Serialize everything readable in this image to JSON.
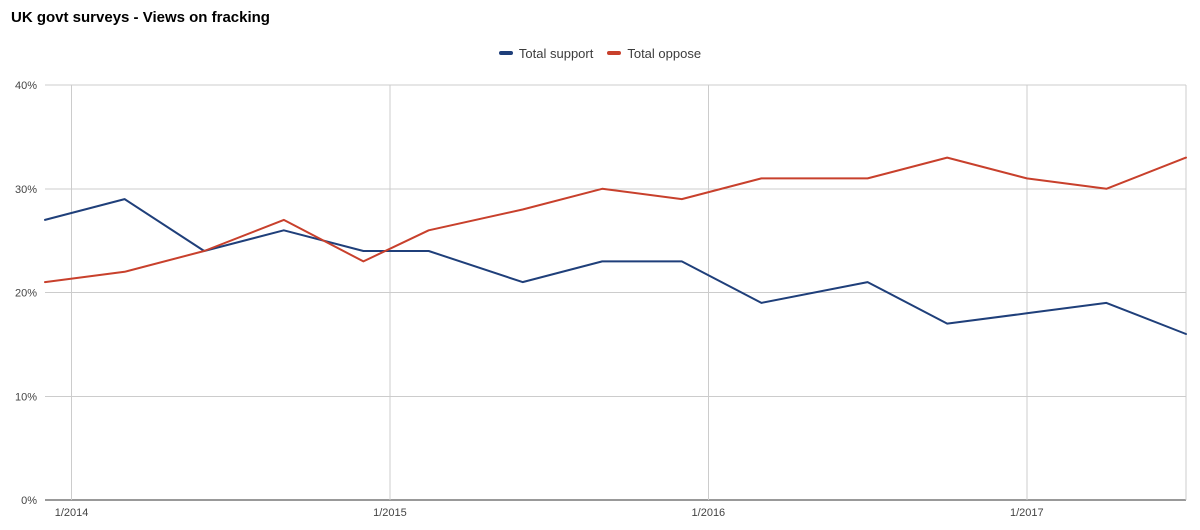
{
  "chart_data": {
    "type": "line",
    "title": "UK govt surveys - Views on fracking",
    "xlabel": "",
    "ylabel": "",
    "x_ticks": [
      "1/2014",
      "1/2015",
      "1/2016",
      "1/2017"
    ],
    "x": [
      "2013-12-01",
      "2014-03-01",
      "2014-06-01",
      "2014-09-01",
      "2014-12-01",
      "2015-02-15",
      "2015-06-01",
      "2015-09-01",
      "2015-12-01",
      "2016-03-01",
      "2016-07-01",
      "2016-10-01",
      "2017-01-01",
      "2017-04-01",
      "2017-07-01"
    ],
    "series": [
      {
        "name": "Total support",
        "color": "#1f3f7a",
        "values": [
          27,
          29,
          24,
          26,
          24,
          24,
          21,
          23,
          23,
          19,
          21,
          17,
          18,
          19,
          16
        ]
      },
      {
        "name": "Total oppose",
        "color": "#c8402c",
        "values": [
          21,
          22,
          24,
          27,
          23,
          26,
          28,
          30,
          29,
          31,
          31,
          33,
          31,
          30,
          33
        ]
      }
    ],
    "y_ticks": [
      0,
      10,
      20,
      30,
      40
    ],
    "y_tick_labels": [
      "0%",
      "10%",
      "20%",
      "30%",
      "40%"
    ],
    "ylim": [
      0,
      40
    ],
    "xlim": [
      "2013-12-01",
      "2017-07-01"
    ],
    "grid": true,
    "legend_position": "top-center"
  }
}
